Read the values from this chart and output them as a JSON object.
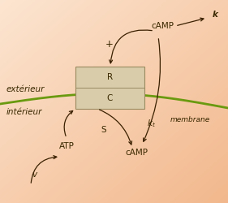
{
  "membrane_color": "#6a9a10",
  "arrow_color": "#3a2000",
  "text_color": "#3a2800",
  "box_facecolor": "#d8ccaa",
  "box_edgecolor": "#9a8a60",
  "label_exterieur": "extérieur",
  "label_interieur": "intérieur",
  "label_membrane": "membrane",
  "label_R": "R",
  "label_C": "C",
  "label_S": "S",
  "label_v": "v",
  "label_k": "k",
  "label_ATP": "ATP",
  "label_cAMP_top": "cAMP",
  "label_cAMP_bottom": "cAMP",
  "label_plus": "+",
  "grad_topleft": [
    0.99,
    0.9,
    0.82
  ],
  "grad_bottomright": [
    0.95,
    0.72,
    0.55
  ],
  "fs_main": 7.5,
  "fs_small": 6.5
}
